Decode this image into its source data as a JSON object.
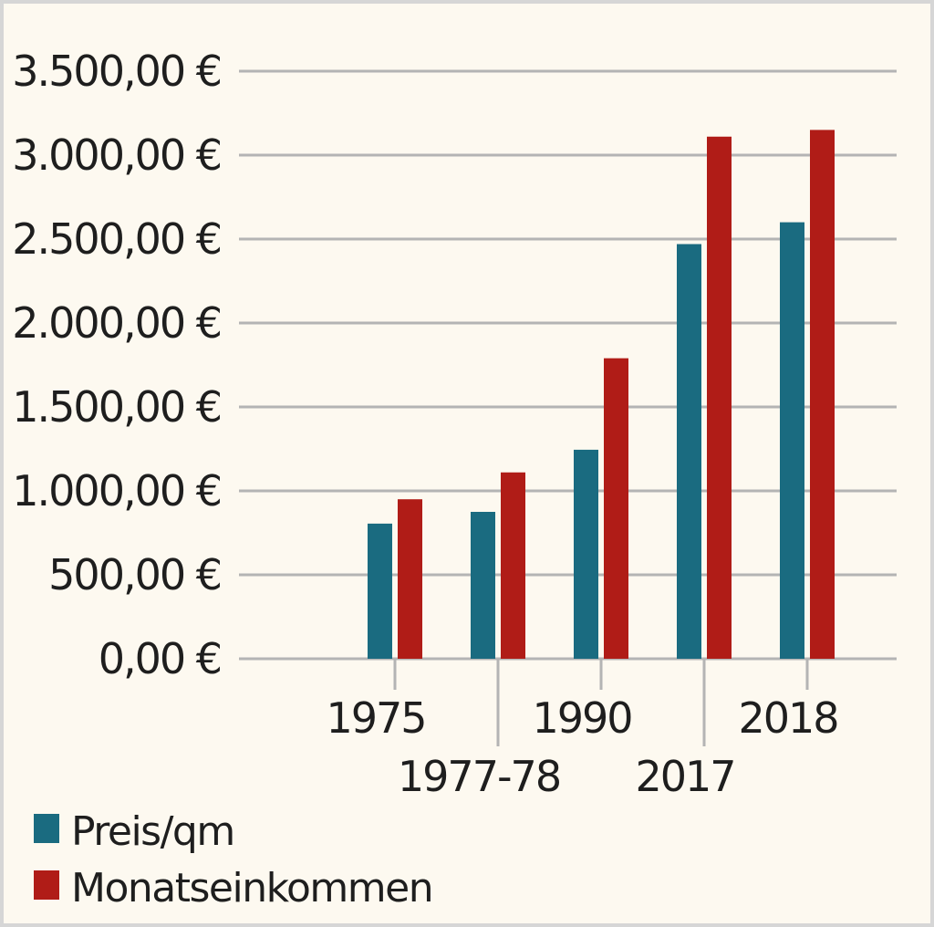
{
  "chart_data": {
    "type": "bar",
    "title": "",
    "xlabel": "",
    "ylabel": "",
    "categories": [
      "1975",
      "1977-78",
      "1990",
      "2017",
      "2018"
    ],
    "series": [
      {
        "name": "Preis/qm",
        "color": "#1a6b80",
        "values": [
          805,
          875,
          1245,
          2470,
          2600
        ]
      },
      {
        "name": "Monatseinkommen",
        "color": "#b01c17",
        "values": [
          950,
          1110,
          1790,
          3110,
          3150
        ]
      }
    ],
    "ylim": [
      0,
      3500
    ],
    "yticks": [
      {
        "value": 0,
        "label": "0,00 €"
      },
      {
        "value": 500,
        "label": "500,00 €"
      },
      {
        "value": 1000,
        "label": "1.000,00 €"
      },
      {
        "value": 1500,
        "label": "1.500,00 €"
      },
      {
        "value": 2000,
        "label": "2.000,00 €"
      },
      {
        "value": 2500,
        "label": "2.500,00 €"
      },
      {
        "value": 3000,
        "label": "3.000,00 €"
      },
      {
        "value": 3500,
        "label": "3.500,00 €"
      }
    ],
    "grid": true,
    "legend_position": "bottom-left",
    "category_labels_staggered": true
  }
}
